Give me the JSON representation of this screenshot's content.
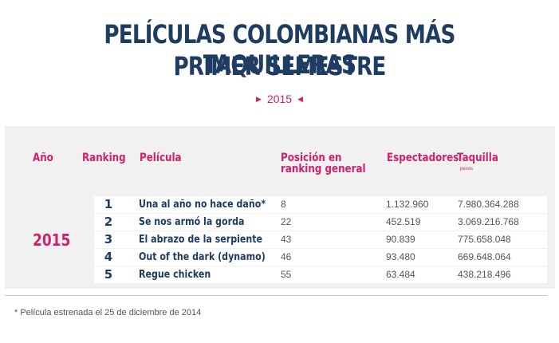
{
  "title": {
    "line1": "PELÍCULAS COLOMBIANAS MÁS TAQUILLERAS",
    "line2": "PRIMER SEMESTRE"
  },
  "year_selector": {
    "value": "2015",
    "prev_icon": "triangle-right",
    "next_icon": "triangle-left"
  },
  "table": {
    "headers": {
      "year": "Año",
      "ranking": "Ranking",
      "film": "Película",
      "position_line1": "Posición en",
      "position_line2": "ranking general",
      "viewers": "Espectadores",
      "boxoffice": "Taquilla",
      "boxoffice_unit": "pesos"
    },
    "year": "2015",
    "rows": [
      {
        "rank": "1",
        "film": "Una al año no hace daño*",
        "position": "8",
        "viewers": "1.132.960",
        "boxoffice": "7.980.364.288"
      },
      {
        "rank": "2",
        "film": "Se nos armó la gorda",
        "position": "22",
        "viewers": "452.519",
        "boxoffice": "3.069.216.768"
      },
      {
        "rank": "3",
        "film": "El abrazo de la serpiente",
        "position": "43",
        "viewers": "90.839",
        "boxoffice": "775.658.048"
      },
      {
        "rank": "4",
        "film": "Out of the dark (dynamo)",
        "position": "46",
        "viewers": "93.480",
        "boxoffice": "669.648.064"
      },
      {
        "rank": "5",
        "film": "Regue chicken",
        "position": "55",
        "viewers": "63.484",
        "boxoffice": "438.218.496"
      }
    ]
  },
  "footnote": "* Película estrenada el 25 de diciembre de 2014",
  "colors": {
    "title": "#1f3c63",
    "accent": "#d01f6b",
    "panel": "#f1f1f2"
  }
}
